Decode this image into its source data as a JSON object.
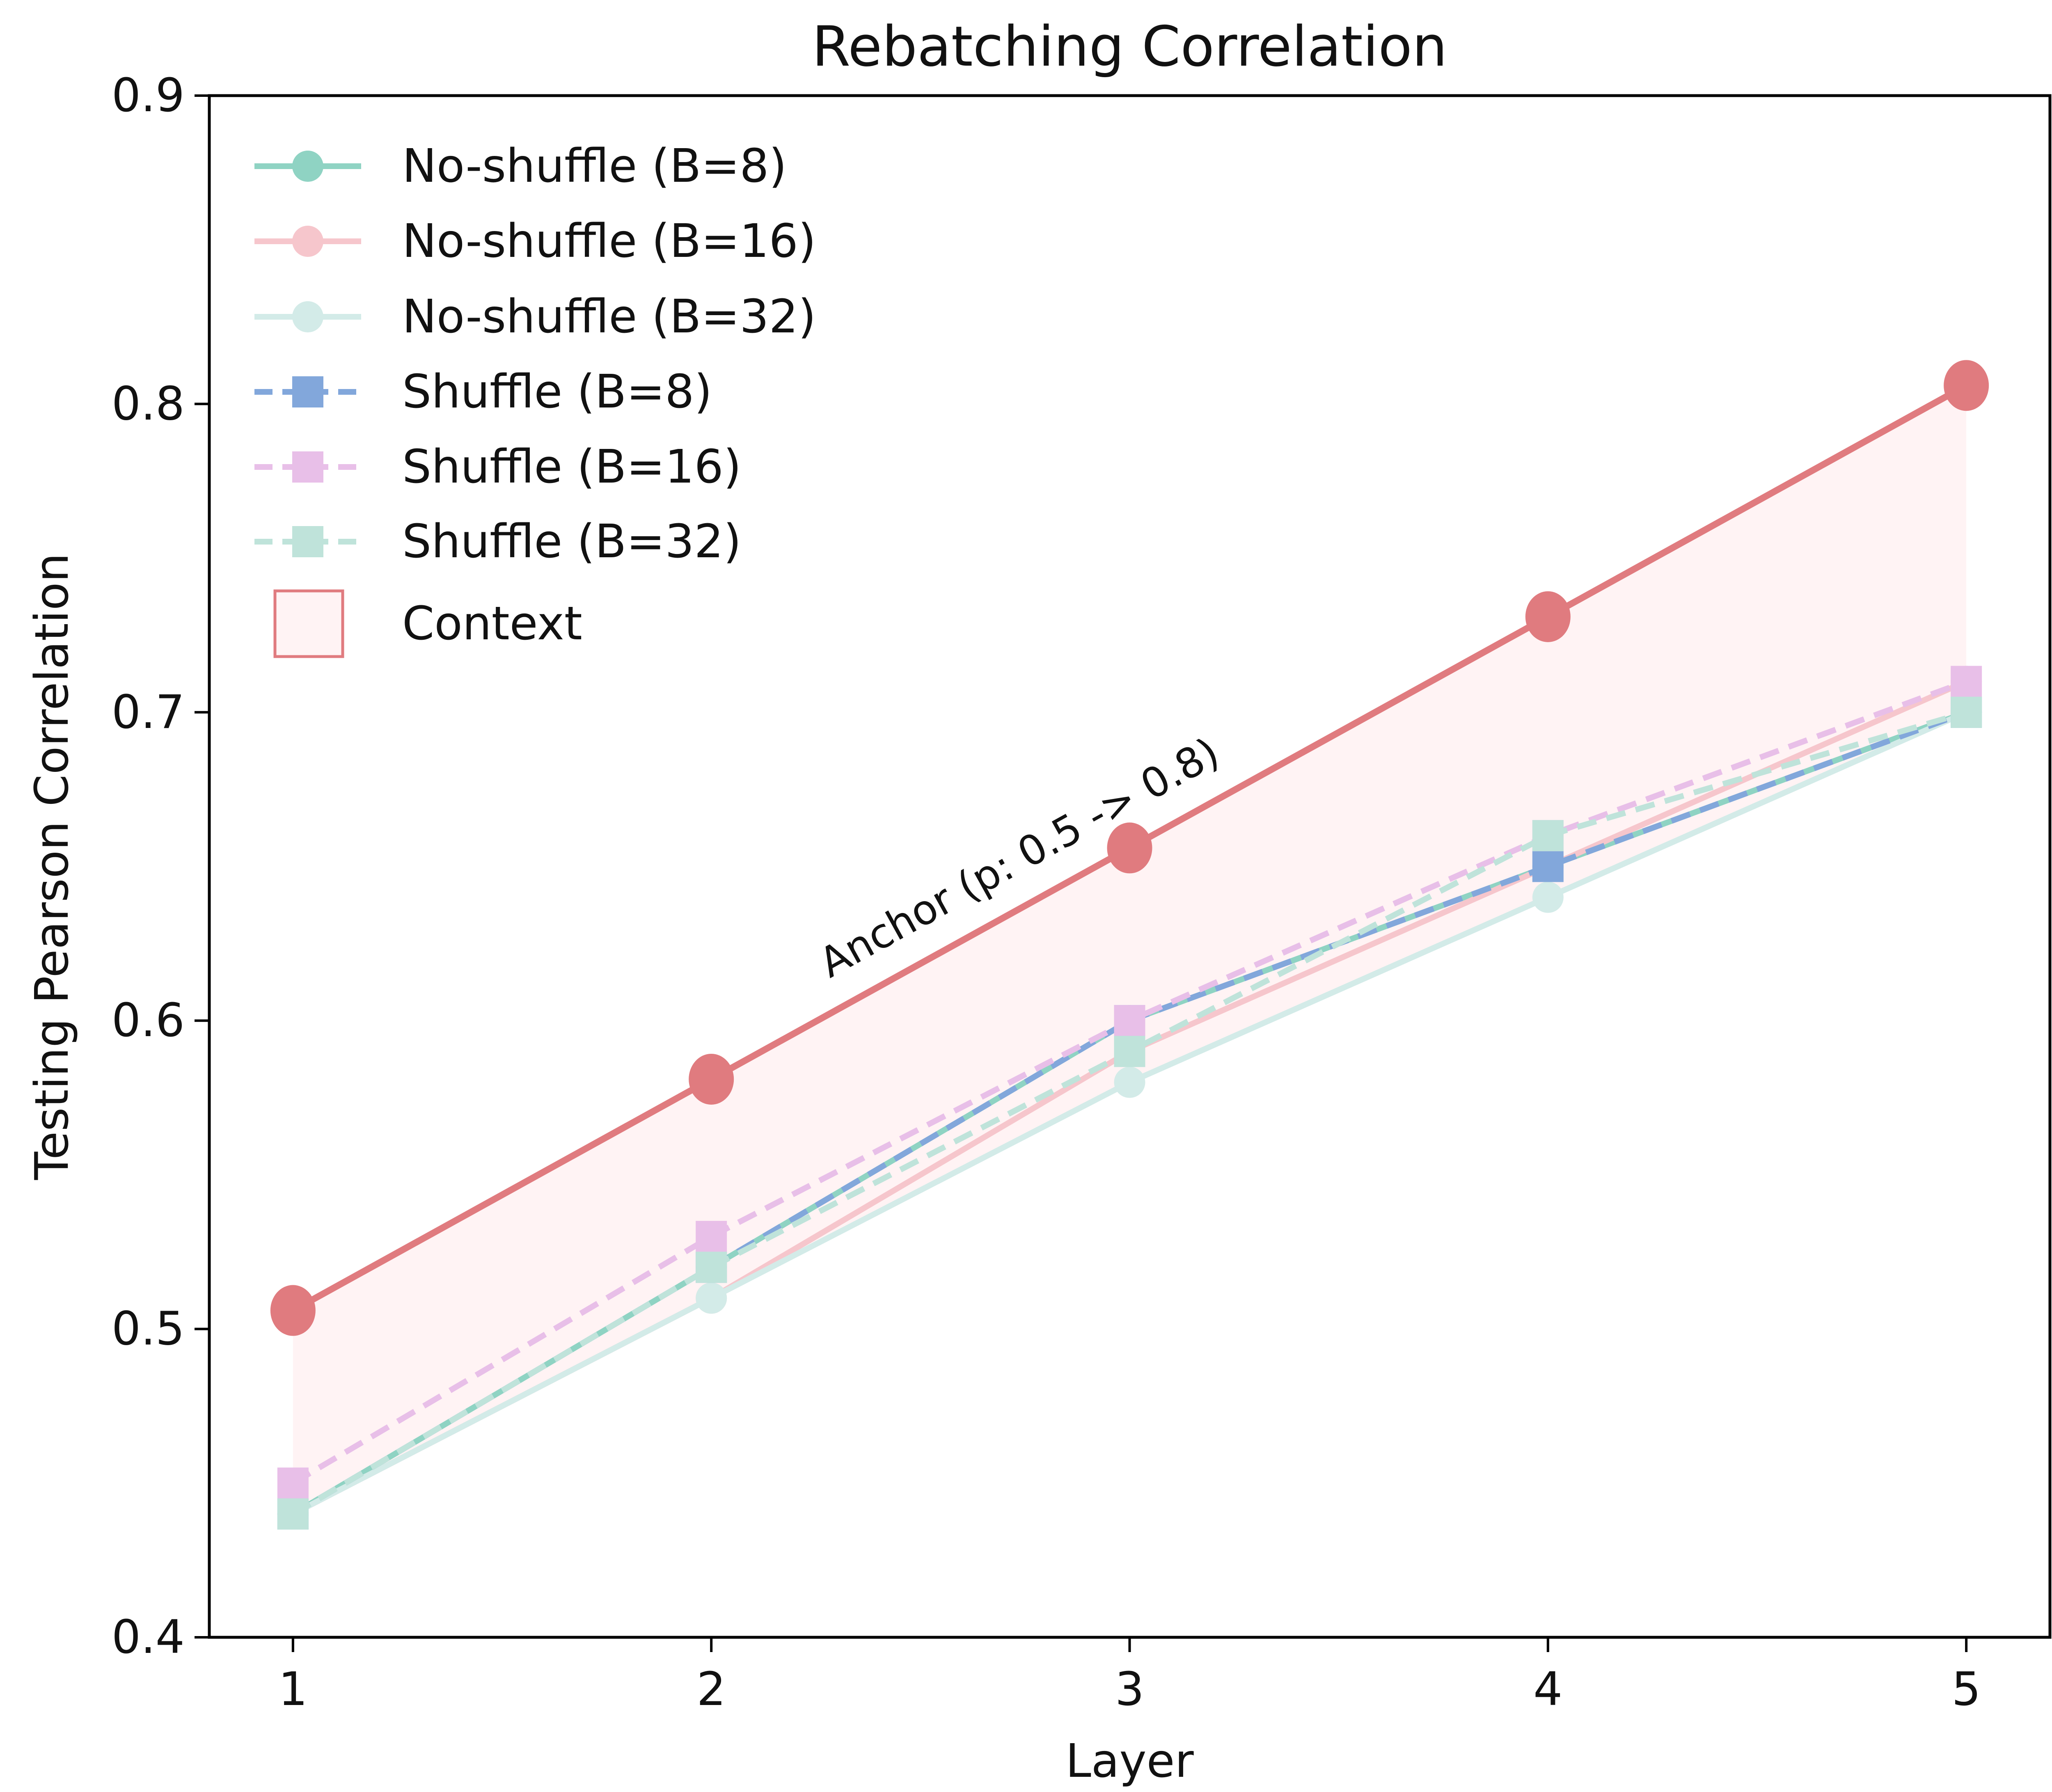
{
  "chart_data": {
    "type": "line",
    "title": "Rebatching Correlation",
    "xlabel": "Layer",
    "ylabel": "Testing Pearson Correlation",
    "x": [
      1,
      2,
      3,
      4,
      5
    ],
    "xlim": [
      0.8,
      5.2
    ],
    "ylim": [
      0.4,
      0.9
    ],
    "xticks": [
      "1",
      "2",
      "3",
      "4",
      "5"
    ],
    "yticks": [
      "0.4",
      "0.5",
      "0.6",
      "0.7",
      "0.8",
      "0.9"
    ],
    "grid": false,
    "legend_position": "top-left",
    "series": [
      {
        "name": "No-shuffle (B=8)",
        "values": [
          0.44,
          0.52,
          0.6,
          0.65,
          0.7
        ],
        "color": "#8fd3c3",
        "style": "solid",
        "marker": "circle"
      },
      {
        "name": "No-shuffle (B=16)",
        "values": [
          0.44,
          0.51,
          0.59,
          0.65,
          0.71
        ],
        "color": "#f6c6cc",
        "style": "solid",
        "marker": "circle"
      },
      {
        "name": "No-shuffle (B=32)",
        "values": [
          0.44,
          0.51,
          0.58,
          0.64,
          0.7
        ],
        "color": "#d3ebe8",
        "style": "solid",
        "marker": "circle"
      },
      {
        "name": "Shuffle (B=8)",
        "values": [
          0.44,
          0.52,
          0.6,
          0.65,
          0.7
        ],
        "color": "#82a7db",
        "style": "dashed",
        "marker": "square"
      },
      {
        "name": "Shuffle (B=16)",
        "values": [
          0.45,
          0.53,
          0.6,
          0.66,
          0.71
        ],
        "color": "#e8bfe8",
        "style": "dashed",
        "marker": "square"
      },
      {
        "name": "Shuffle (B=32)",
        "values": [
          0.44,
          0.52,
          0.59,
          0.66,
          0.7
        ],
        "color": "#bfe3da",
        "style": "dashed",
        "marker": "square"
      }
    ],
    "anchor": {
      "values": [
        0.506,
        0.581,
        0.656,
        0.731,
        0.806
      ],
      "color": "#e07b7f",
      "label": "Anchor (p: 0.5 -> 0.8)"
    },
    "context_band": {
      "name": "Context",
      "fill": "#fff3f4",
      "edge": "#e07b7f"
    }
  }
}
